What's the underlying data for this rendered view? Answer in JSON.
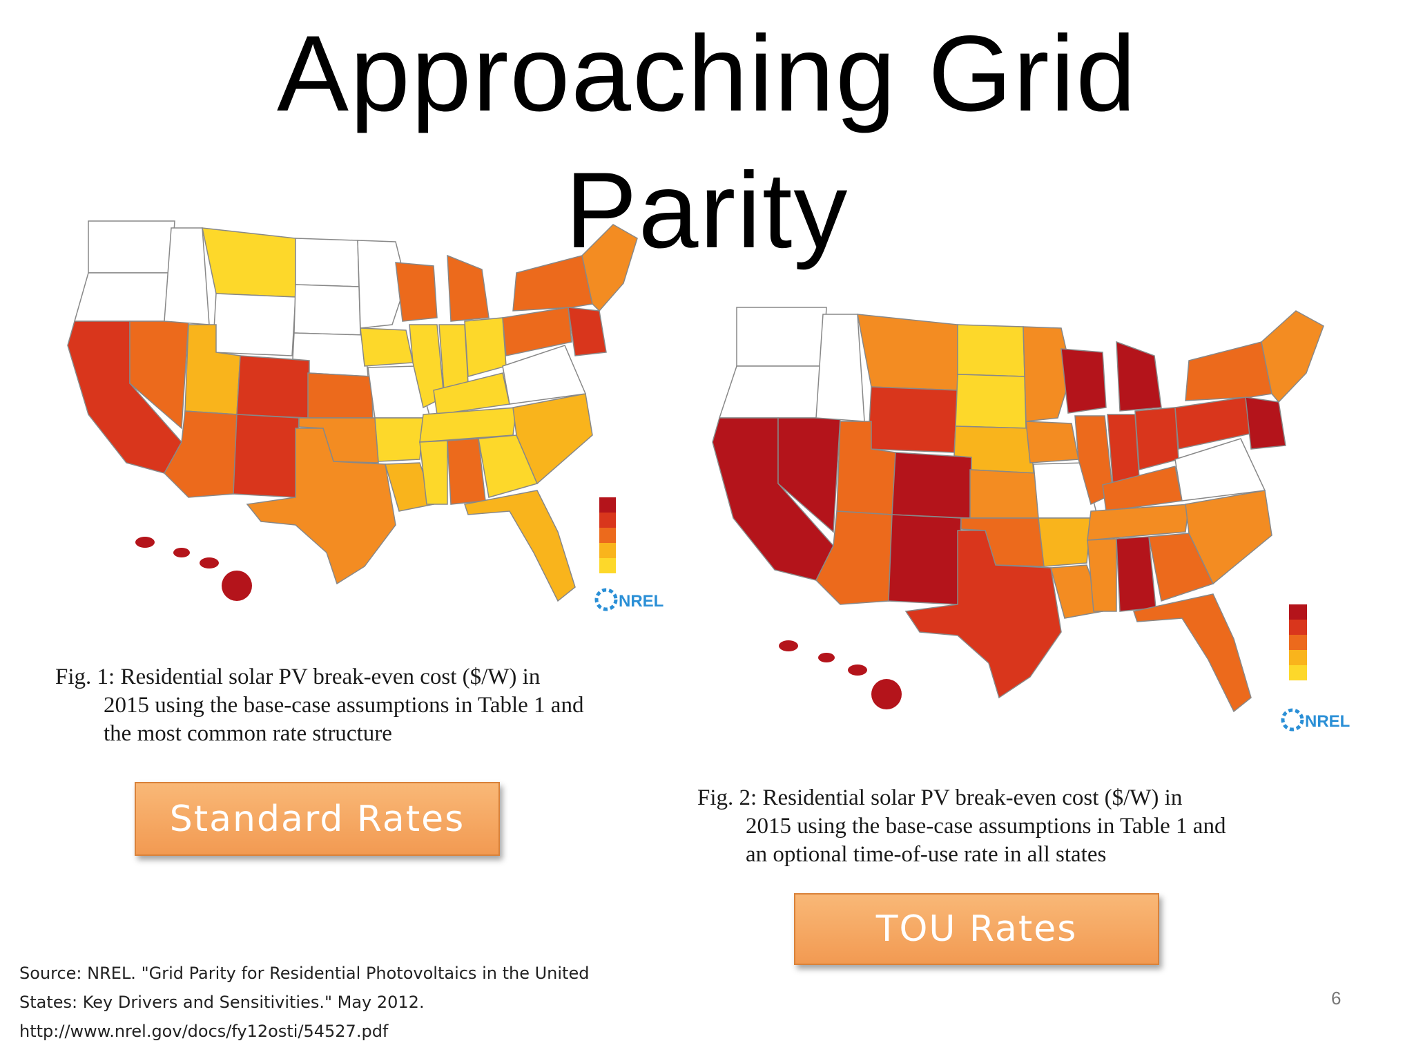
{
  "slide": {
    "title_line1": "Approaching Grid",
    "title_line2": "Parity",
    "page_number": "6"
  },
  "figures": {
    "fig1": {
      "caption_lines": [
        "Fig. 1:    Residential solar PV break-even cost ($/W) in",
        "2015 using the base-case assumptions in Table 1 and",
        "the most common rate structure"
      ],
      "button_label": "Standard Rates",
      "logo_text": "NREL"
    },
    "fig2": {
      "caption_lines": [
        "Fig. 2:    Residential solar PV break-even cost ($/W) in",
        "2015 using the base-case assumptions in Table 1 and",
        "an optional time-of-use rate in all states"
      ],
      "button_label": "TOU Rates",
      "logo_text": "NREL"
    }
  },
  "source": {
    "lines": [
      "Source: NREL. \"Grid Parity for Residential Photovoltaics in the United",
      "States: Key Drivers and Sensitivities.\" May 2012.",
      "http://www.nrel.gov/docs/fy12osti/54527.pdf"
    ]
  },
  "colors": {
    "dark_red": "#b4141b",
    "red": "#d9361c",
    "orange_red": "#ec6a1c",
    "orange": "#f38c22",
    "yellow_orange": "#f9b41c",
    "yellow": "#fdd82a",
    "white": "#ffffff"
  }
}
